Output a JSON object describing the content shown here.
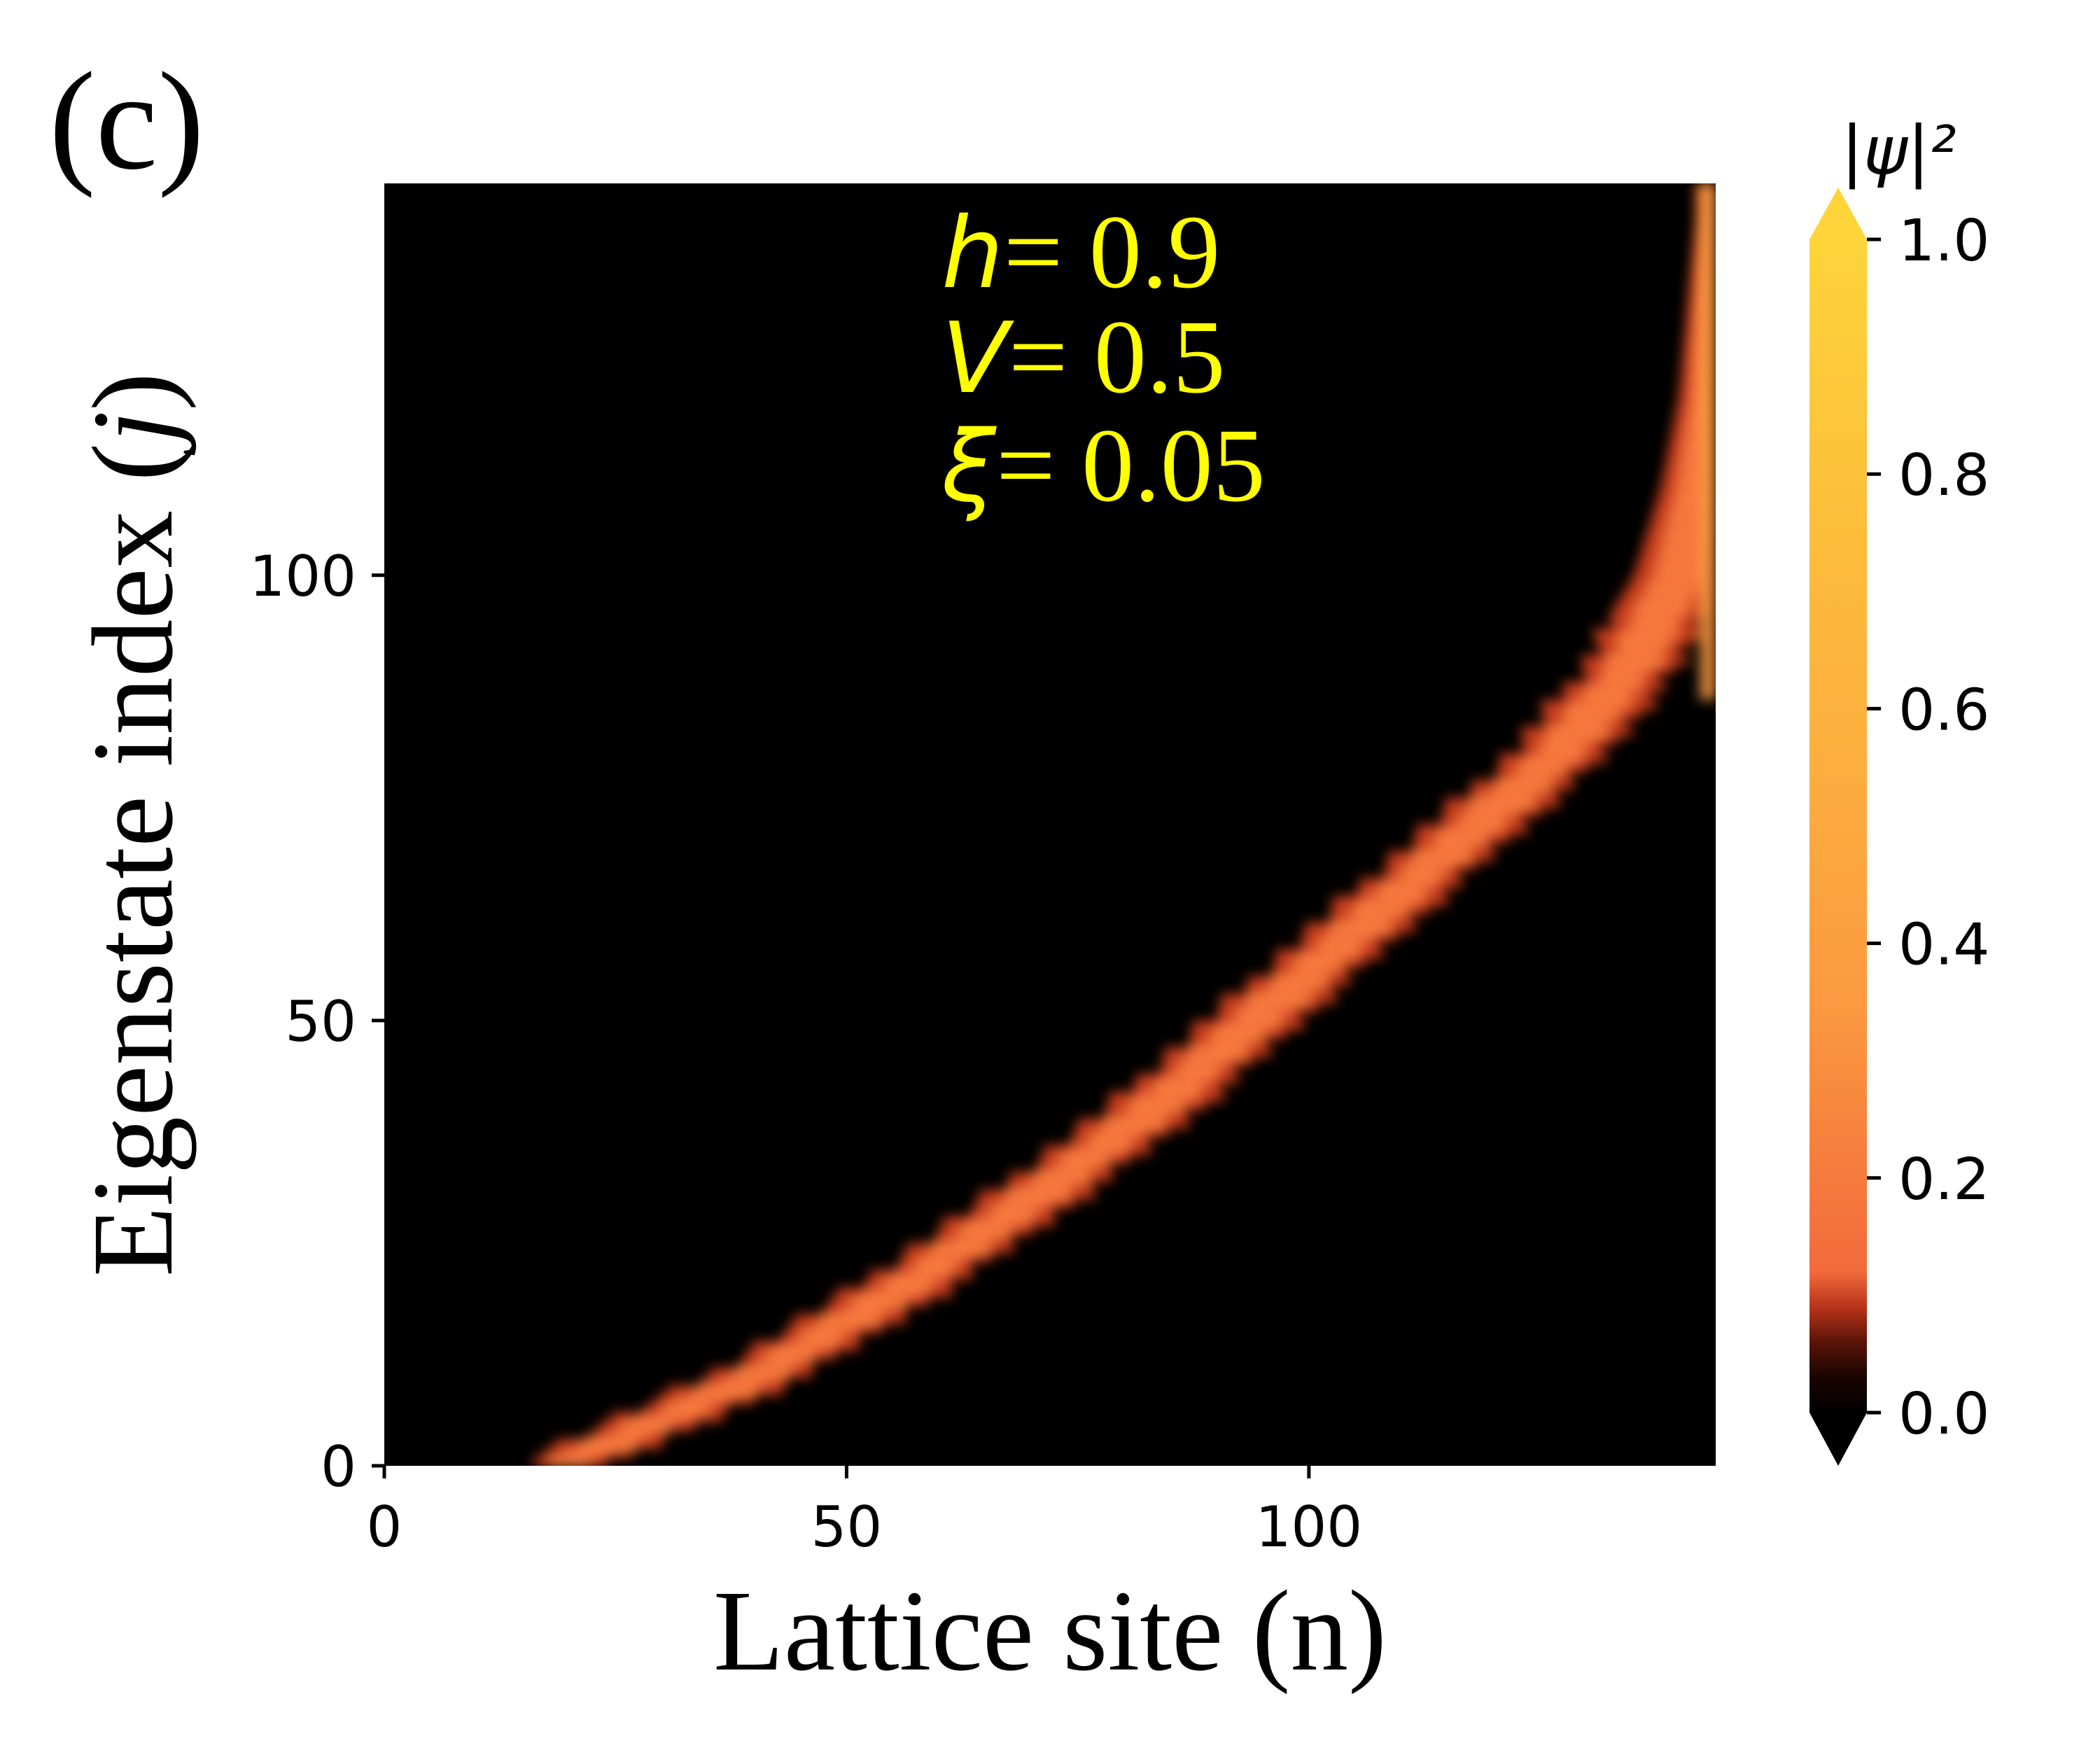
{
  "panel_label": "(c)",
  "chart_data": {
    "type": "heatmap",
    "title": "",
    "xlabel": "Lattice site (n)",
    "ylabel_prefix": "Eigenstate index (",
    "ylabel_var": "j",
    "ylabel_suffix": ")",
    "xlim": [
      0,
      144
    ],
    "ylim": [
      0,
      144
    ],
    "x_ticks": [
      0,
      50,
      100
    ],
    "x_tick_labels": [
      "0",
      "50",
      "100"
    ],
    "y_ticks": [
      0,
      50,
      100
    ],
    "y_tick_labels": [
      "0",
      "50",
      "100"
    ],
    "colorbar": {
      "label": "|ψ|²",
      "min": 0.0,
      "max": 1.0,
      "extend": "both",
      "ticks": [
        0.0,
        0.2,
        0.4,
        0.6,
        0.8,
        1.0
      ],
      "tick_labels": [
        "0.0",
        "0.2",
        "0.4",
        "0.6",
        "0.8",
        "1.0"
      ],
      "colors": [
        "#000000",
        "#1a0500",
        "#5a1408",
        "#b8341a",
        "#f26a3c",
        "#fb9a40",
        "#fcae3f",
        "#fdbd3b",
        "#fdd43a"
      ]
    },
    "band_center_curve": {
      "description": "site n of localized peak vs eigenstate index j",
      "j": [
        0,
        10,
        20,
        30,
        40,
        50,
        60,
        70,
        80,
        90,
        100,
        110,
        120,
        130,
        144
      ],
      "n": [
        19,
        40,
        56,
        70,
        83,
        94,
        105,
        116,
        127,
        135,
        140,
        142,
        143,
        143,
        143
      ]
    },
    "annotations": [
      {
        "var": "h",
        "text": "= 0.9"
      },
      {
        "var": "V",
        "text": "= 0.5"
      },
      {
        "var": "ξ",
        "text": "= 0.05"
      }
    ]
  }
}
